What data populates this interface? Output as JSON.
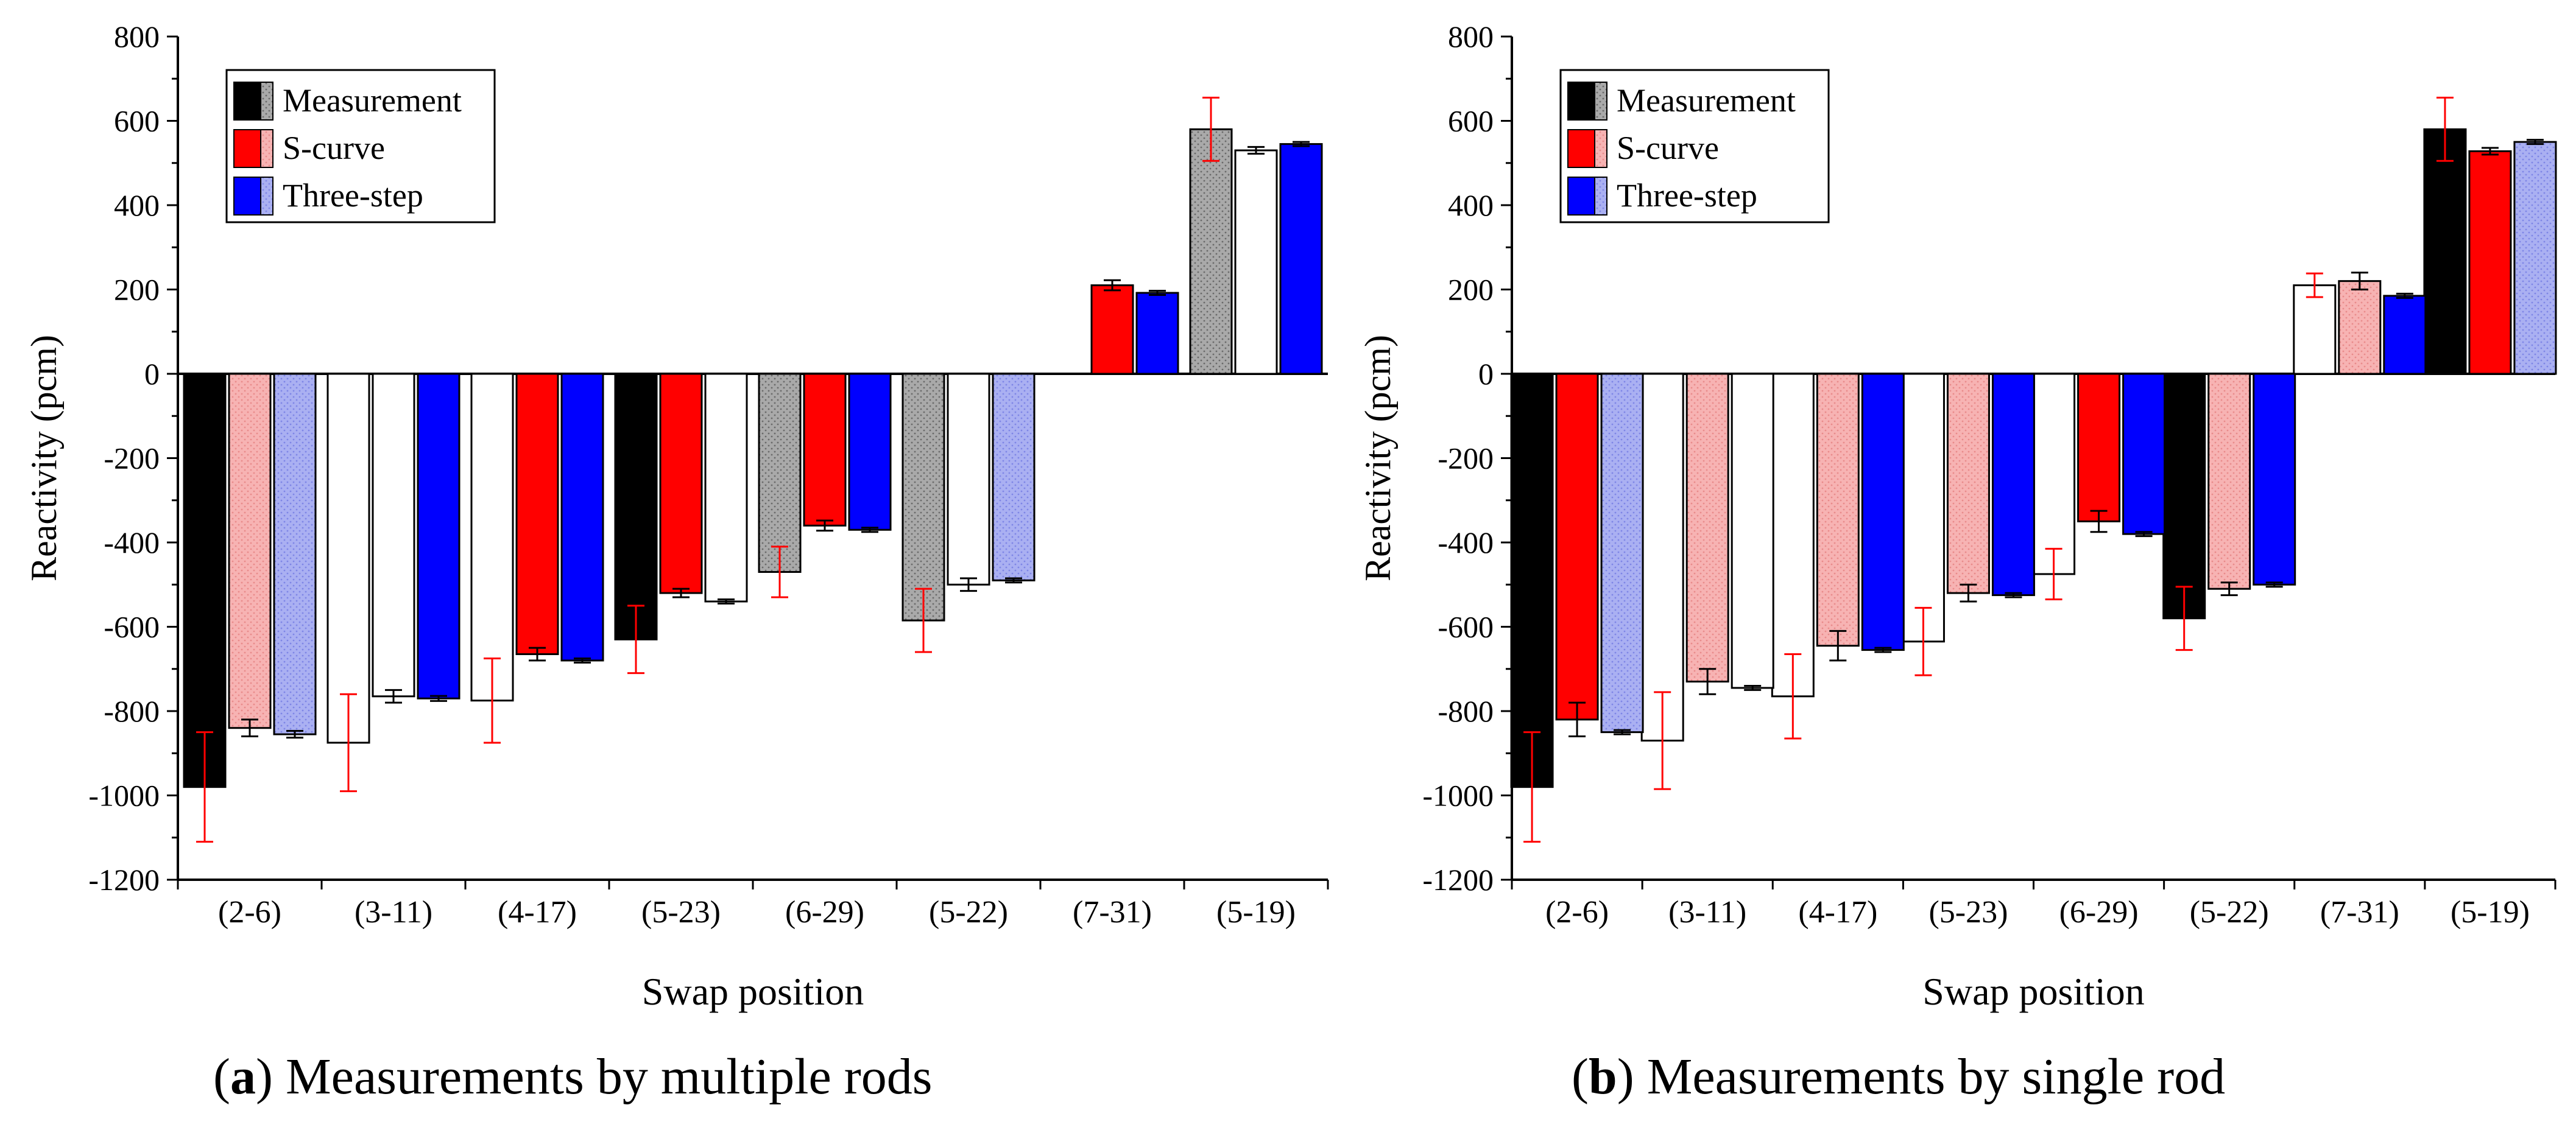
{
  "captions": [
    {
      "letter": "a",
      "text": "Measurements by multiple rods"
    },
    {
      "letter": "b",
      "text": "Measurements by single rod"
    }
  ],
  "colors": {
    "measurement": "#000000",
    "s_curve": "#ff0000",
    "three_step": "#0000ff",
    "axis": "#000000"
  },
  "chart_data": [
    {
      "type": "bar",
      "panel": "a",
      "title": "",
      "xlabel": "Swap position",
      "ylabel": "Reactivity (pcm)",
      "ylim": [
        -1200,
        800
      ],
      "yticks": [
        -1200,
        -1000,
        -800,
        -600,
        -400,
        -200,
        0,
        200,
        400,
        600,
        800
      ],
      "categories": [
        "(2-6)",
        "(3-11)",
        "(4-17)",
        "(5-23)",
        "(6-29)",
        "(5-22)",
        "(7-31)",
        "(5-19)"
      ],
      "legend": {
        "placement": "top-left",
        "entries": [
          "Measurement",
          "S-curve",
          "Three-step"
        ]
      },
      "series": [
        {
          "name": "Measurement",
          "values": [
            -980,
            -875,
            -775,
            -630,
            -470,
            -585,
            null,
            580
          ],
          "err": [
            130,
            115,
            100,
            80,
            60,
            75,
            0,
            75
          ]
        },
        {
          "name": "S-curve",
          "values": [
            -840,
            -765,
            -665,
            -520,
            -360,
            -500,
            210,
            530
          ],
          "err": [
            20,
            15,
            15,
            10,
            12,
            15,
            12,
            8
          ]
        },
        {
          "name": "Three-step",
          "values": [
            -855,
            -770,
            -680,
            -540,
            -370,
            -490,
            192,
            545
          ],
          "err": [
            8,
            6,
            5,
            5,
            5,
            5,
            5,
            5
          ]
        }
      ]
    },
    {
      "type": "bar",
      "panel": "b",
      "title": "",
      "xlabel": "Swap position",
      "ylabel": "Reactivity (pcm)",
      "ylim": [
        -1200,
        800
      ],
      "yticks": [
        -1200,
        -1000,
        -800,
        -600,
        -400,
        -200,
        0,
        200,
        400,
        600,
        800
      ],
      "categories": [
        "(2-6)",
        "(3-11)",
        "(4-17)",
        "(5-23)",
        "(6-29)",
        "(5-22)",
        "(7-31)",
        "(5-19)"
      ],
      "legend": {
        "placement": "top-left",
        "entries": [
          "Measurement",
          "S-curve",
          "Three-step"
        ]
      },
      "series": [
        {
          "name": "Measurement",
          "values": [
            -980,
            -870,
            -765,
            -635,
            -475,
            -580,
            210,
            580
          ],
          "err": [
            130,
            115,
            100,
            80,
            60,
            75,
            28,
            75
          ]
        },
        {
          "name": "S-curve",
          "values": [
            -820,
            -730,
            -645,
            -520,
            -350,
            -510,
            220,
            528
          ],
          "err": [
            40,
            30,
            35,
            20,
            25,
            15,
            20,
            8
          ]
        },
        {
          "name": "Three-step",
          "values": [
            -850,
            -745,
            -655,
            -525,
            -380,
            -500,
            185,
            550
          ],
          "err": [
            5,
            5,
            5,
            5,
            5,
            5,
            5,
            5
          ]
        }
      ]
    }
  ]
}
